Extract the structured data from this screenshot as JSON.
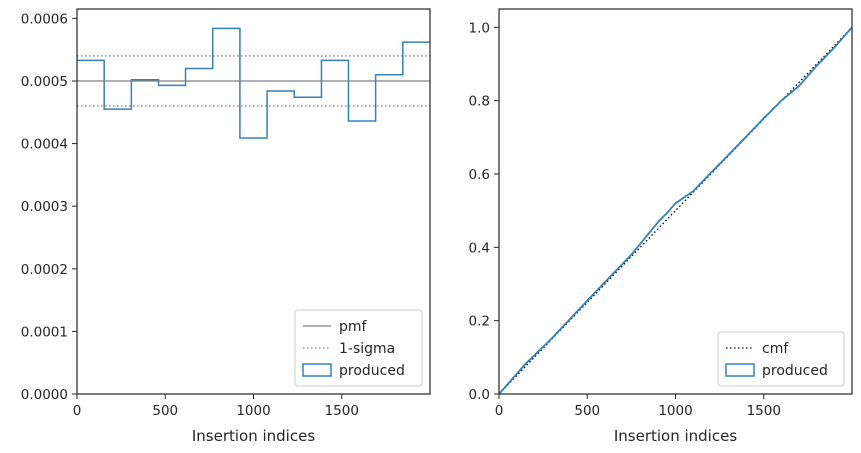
{
  "chart_data": [
    {
      "type": "histogram",
      "xlabel": "Insertion indices",
      "ylabel": "",
      "title": "",
      "xlim": [
        0,
        2000
      ],
      "ylim": [
        0,
        0.000615
      ],
      "xticks": [
        0,
        500,
        1000,
        1500
      ],
      "xtick_labels": [
        "0",
        "500",
        "1000",
        "1500"
      ],
      "yticks": [
        0,
        0.0001,
        0.0002,
        0.0003,
        0.0004,
        0.0005,
        0.0006
      ],
      "ytick_labels": [
        "0.0000",
        "0.0001",
        "0.0002",
        "0.0003",
        "0.0004",
        "0.0005",
        "0.0006"
      ],
      "grid": false,
      "legend_position": "lower-right",
      "bin_edges": [
        0,
        154,
        308,
        462,
        615,
        769,
        923,
        1077,
        1231,
        1385,
        1538,
        1692,
        1846,
        2000
      ],
      "series": [
        {
          "name": "produced",
          "style": "step",
          "color": "#3182bd",
          "values": [
            0.000533,
            0.000455,
            0.000502,
            0.000493,
            0.00052,
            0.000584,
            0.000409,
            0.000484,
            0.000474,
            0.000533,
            0.000436,
            0.00051,
            0.000562
          ]
        },
        {
          "name": "pmf",
          "style": "solid",
          "color": "#808080",
          "value": 0.0005
        },
        {
          "name": "1-sigma",
          "style": "dotted",
          "color": "#808080",
          "values": [
            0.00054,
            0.00046
          ]
        }
      ],
      "legend": [
        "pmf",
        "1-sigma",
        "produced"
      ]
    },
    {
      "type": "line",
      "xlabel": "Insertion indices",
      "ylabel": "",
      "title": "",
      "xlim": [
        0,
        2000
      ],
      "ylim": [
        0,
        1.05
      ],
      "xticks": [
        0,
        500,
        1000,
        1500
      ],
      "xtick_labels": [
        "0",
        "500",
        "1000",
        "1500"
      ],
      "yticks": [
        0,
        0.2,
        0.4,
        0.6,
        0.8,
        1.0
      ],
      "ytick_labels": [
        "0.0",
        "0.2",
        "0.4",
        "0.6",
        "0.8",
        "1.0"
      ],
      "grid": false,
      "legend_position": "lower-right",
      "series": [
        {
          "name": "cmf",
          "style": "dotted",
          "color": "#000000",
          "x": [
            0,
            2000
          ],
          "y": [
            0,
            1.0
          ]
        },
        {
          "name": "produced",
          "style": "step",
          "color": "#3182bd",
          "x": [
            0,
            150,
            300,
            450,
            600,
            750,
            900,
            950,
            1000,
            1100,
            1200,
            1300,
            1400,
            1500,
            1600,
            1700,
            1800,
            1900,
            2000
          ],
          "y": [
            0,
            0.082,
            0.152,
            0.229,
            0.305,
            0.38,
            0.468,
            0.493,
            0.52,
            0.553,
            0.603,
            0.652,
            0.702,
            0.752,
            0.8,
            0.84,
            0.895,
            0.945,
            1.0
          ]
        }
      ],
      "legend": [
        "cmf",
        "produced"
      ]
    }
  ]
}
